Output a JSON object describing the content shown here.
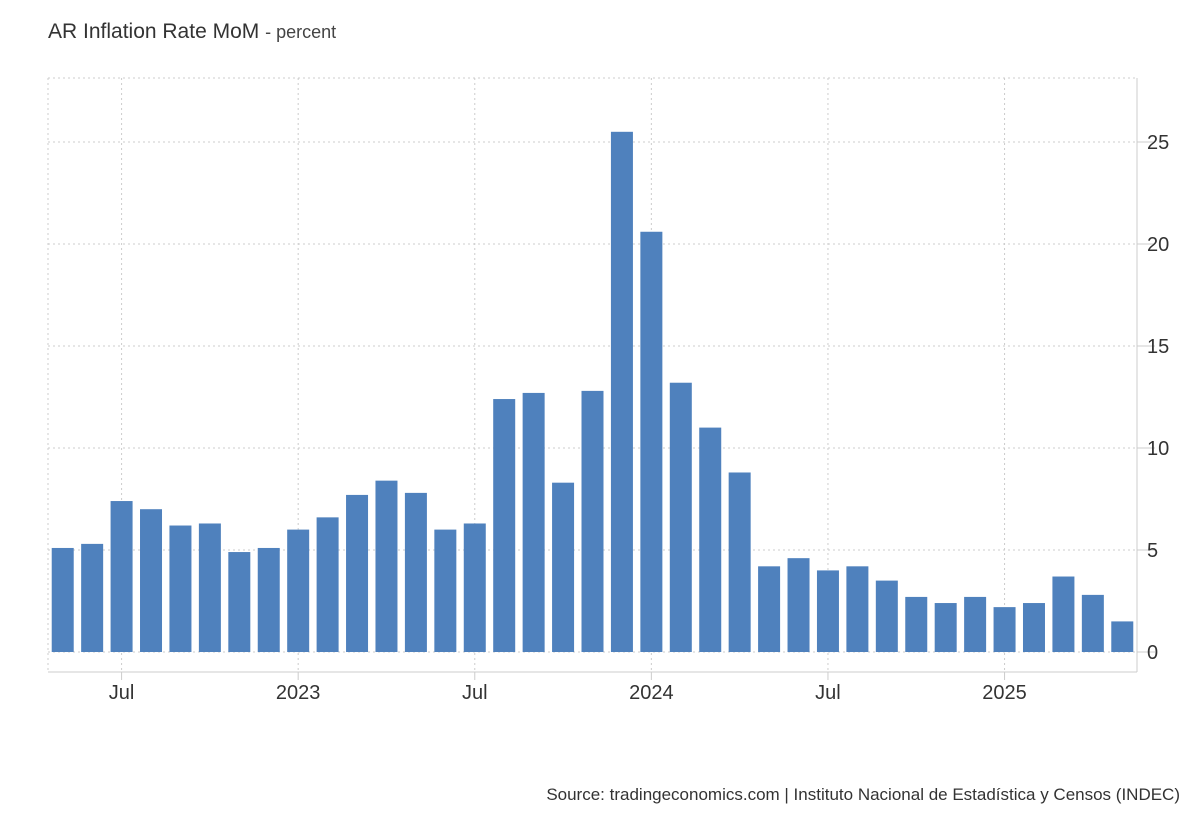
{
  "header": {
    "title": "AR Inflation Rate MoM",
    "subtitle": "- percent"
  },
  "footer": {
    "source": "Source: tradingeconomics.com | Instituto Nacional de Estadística y Censos (INDEC)"
  },
  "colors": {
    "bar": "#4f81bd",
    "grid": "#cccccc",
    "axis": "#cccccc",
    "text": "#333333"
  },
  "chart_data": {
    "type": "bar",
    "title": "AR Inflation Rate MoM",
    "subtitle": "- percent",
    "ylim": [
      -1,
      28.5
    ],
    "y_axis_side": "right",
    "grid": true,
    "yticks": [
      0,
      5,
      10,
      15,
      20,
      25
    ],
    "categories": [
      "2022-05",
      "2022-06",
      "2022-07",
      "2022-08",
      "2022-09",
      "2022-10",
      "2022-11",
      "2022-12",
      "2023-01",
      "2023-02",
      "2023-03",
      "2023-04",
      "2023-05",
      "2023-06",
      "2023-07",
      "2023-08",
      "2023-09",
      "2023-10",
      "2023-11",
      "2023-12",
      "2024-01",
      "2024-02",
      "2024-03",
      "2024-04",
      "2024-05",
      "2024-06",
      "2024-07",
      "2024-08",
      "2024-09",
      "2024-10",
      "2024-11",
      "2024-12",
      "2025-01",
      "2025-02",
      "2025-03",
      "2025-04",
      "2025-05"
    ],
    "values": [
      5.1,
      5.3,
      7.4,
      7.0,
      6.2,
      6.3,
      4.9,
      5.1,
      6.0,
      6.6,
      7.7,
      8.4,
      7.8,
      6.0,
      6.3,
      12.4,
      12.7,
      8.3,
      12.8,
      25.5,
      20.6,
      13.2,
      11.0,
      8.8,
      4.2,
      4.6,
      4.0,
      4.2,
      3.5,
      2.7,
      2.4,
      2.7,
      2.2,
      2.4,
      3.7,
      2.8,
      1.5
    ],
    "x_ticks": [
      {
        "label": "Jul",
        "index": 2
      },
      {
        "label": "2023",
        "index": 8
      },
      {
        "label": "Jul",
        "index": 14
      },
      {
        "label": "2024",
        "index": 20
      },
      {
        "label": "Jul",
        "index": 26
      },
      {
        "label": "2025",
        "index": 32
      }
    ]
  }
}
